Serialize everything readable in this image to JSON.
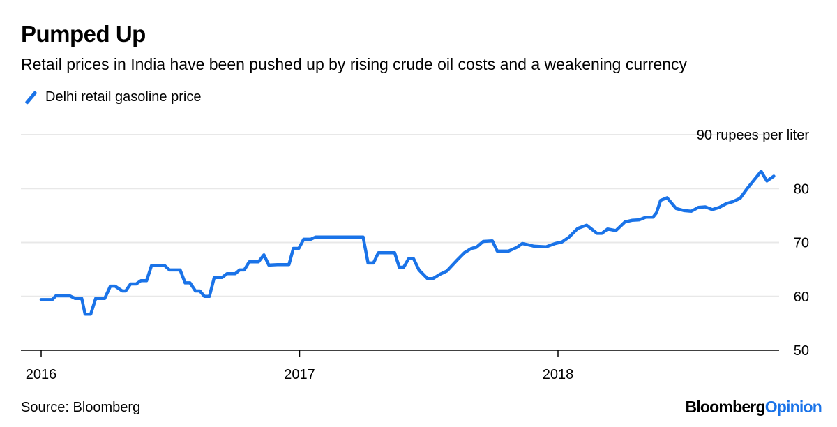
{
  "chart_data": {
    "type": "line",
    "title": "Pumped Up",
    "subtitle": "Retail prices in India have been pushed up by rising crude oil costs and a weakening currency",
    "ylabel": "",
    "xlabel": "",
    "y_unit_label": "90 rupees per liter",
    "ylim": [
      50,
      90
    ],
    "xlim": [
      2016,
      2018.85
    ],
    "yticks": [
      50,
      60,
      70,
      80
    ],
    "xticks": [
      {
        "value": 2016,
        "label": "2016"
      },
      {
        "value": 2017,
        "label": "2017"
      },
      {
        "value": 2018,
        "label": "2018"
      }
    ],
    "grid": true,
    "legend_placement": "top-left",
    "series": [
      {
        "name": "Delhi retail gasoline price",
        "color": "#1a73e8",
        "x": [
          2016.0,
          2016.043,
          2016.057,
          2016.111,
          2016.132,
          2016.157,
          2016.17,
          2016.192,
          2016.211,
          2016.246,
          2016.268,
          2016.286,
          2016.314,
          2016.327,
          2016.346,
          2016.368,
          2016.386,
          2016.408,
          2016.427,
          2016.478,
          2016.497,
          2016.538,
          2016.557,
          2016.576,
          2016.597,
          2016.614,
          2016.632,
          2016.651,
          2016.67,
          2016.7,
          2016.719,
          2016.751,
          2016.768,
          2016.786,
          2016.805,
          2016.841,
          2016.862,
          2016.881,
          2016.914,
          2016.959,
          2016.976,
          2016.997,
          2017.016,
          2017.043,
          2017.062,
          2017.246,
          2017.265,
          2017.286,
          2017.305,
          2017.368,
          2017.386,
          2017.403,
          2017.422,
          2017.441,
          2017.462,
          2017.495,
          2017.516,
          2017.543,
          2017.57,
          2017.611,
          2017.638,
          2017.665,
          2017.684,
          2017.711,
          2017.746,
          2017.765,
          2017.808,
          2017.841,
          2017.862,
          2017.908,
          2017.954,
          2017.989,
          2018.016,
          2018.043,
          2018.076,
          2018.111,
          2018.151,
          2018.17,
          2018.192,
          2018.224,
          2018.259,
          2018.286,
          2018.314,
          2018.341,
          2018.368,
          2018.381,
          2018.397,
          2018.422,
          2018.457,
          2018.489,
          2018.516,
          2018.543,
          2018.57,
          2018.597,
          2018.624,
          2018.651,
          2018.678,
          2018.705,
          2018.732,
          2018.759,
          2018.786,
          2018.808,
          2018.835
        ],
        "values": [
          59.4,
          59.4,
          60.1,
          60.1,
          59.6,
          59.6,
          56.7,
          56.7,
          59.6,
          59.6,
          61.9,
          61.9,
          61.0,
          61.0,
          62.3,
          62.3,
          62.9,
          62.9,
          65.7,
          65.7,
          64.9,
          64.9,
          62.5,
          62.5,
          61.0,
          61.0,
          60.0,
          60.0,
          63.5,
          63.5,
          64.2,
          64.2,
          64.9,
          64.9,
          66.4,
          66.4,
          67.7,
          65.8,
          65.9,
          65.9,
          68.9,
          68.9,
          70.6,
          70.6,
          71.0,
          71.0,
          66.2,
          66.2,
          68.1,
          68.1,
          65.4,
          65.4,
          67.0,
          67.0,
          64.9,
          63.3,
          63.3,
          64.1,
          64.7,
          66.8,
          68.1,
          68.9,
          69.1,
          70.2,
          70.3,
          68.4,
          68.4,
          69.1,
          69.8,
          69.3,
          69.2,
          69.8,
          70.1,
          71.0,
          72.6,
          73.2,
          71.7,
          71.7,
          72.5,
          72.2,
          73.8,
          74.1,
          74.2,
          74.7,
          74.7,
          75.5,
          77.8,
          78.3,
          76.3,
          75.9,
          75.8,
          76.5,
          76.6,
          76.1,
          76.5,
          77.2,
          77.6,
          78.2,
          80.0,
          81.6,
          83.2,
          81.4,
          82.3
        ]
      }
    ]
  },
  "footer": {
    "source": "Source: Bloomberg",
    "logo_main": "Bloomberg",
    "logo_accent": "Opinion"
  }
}
